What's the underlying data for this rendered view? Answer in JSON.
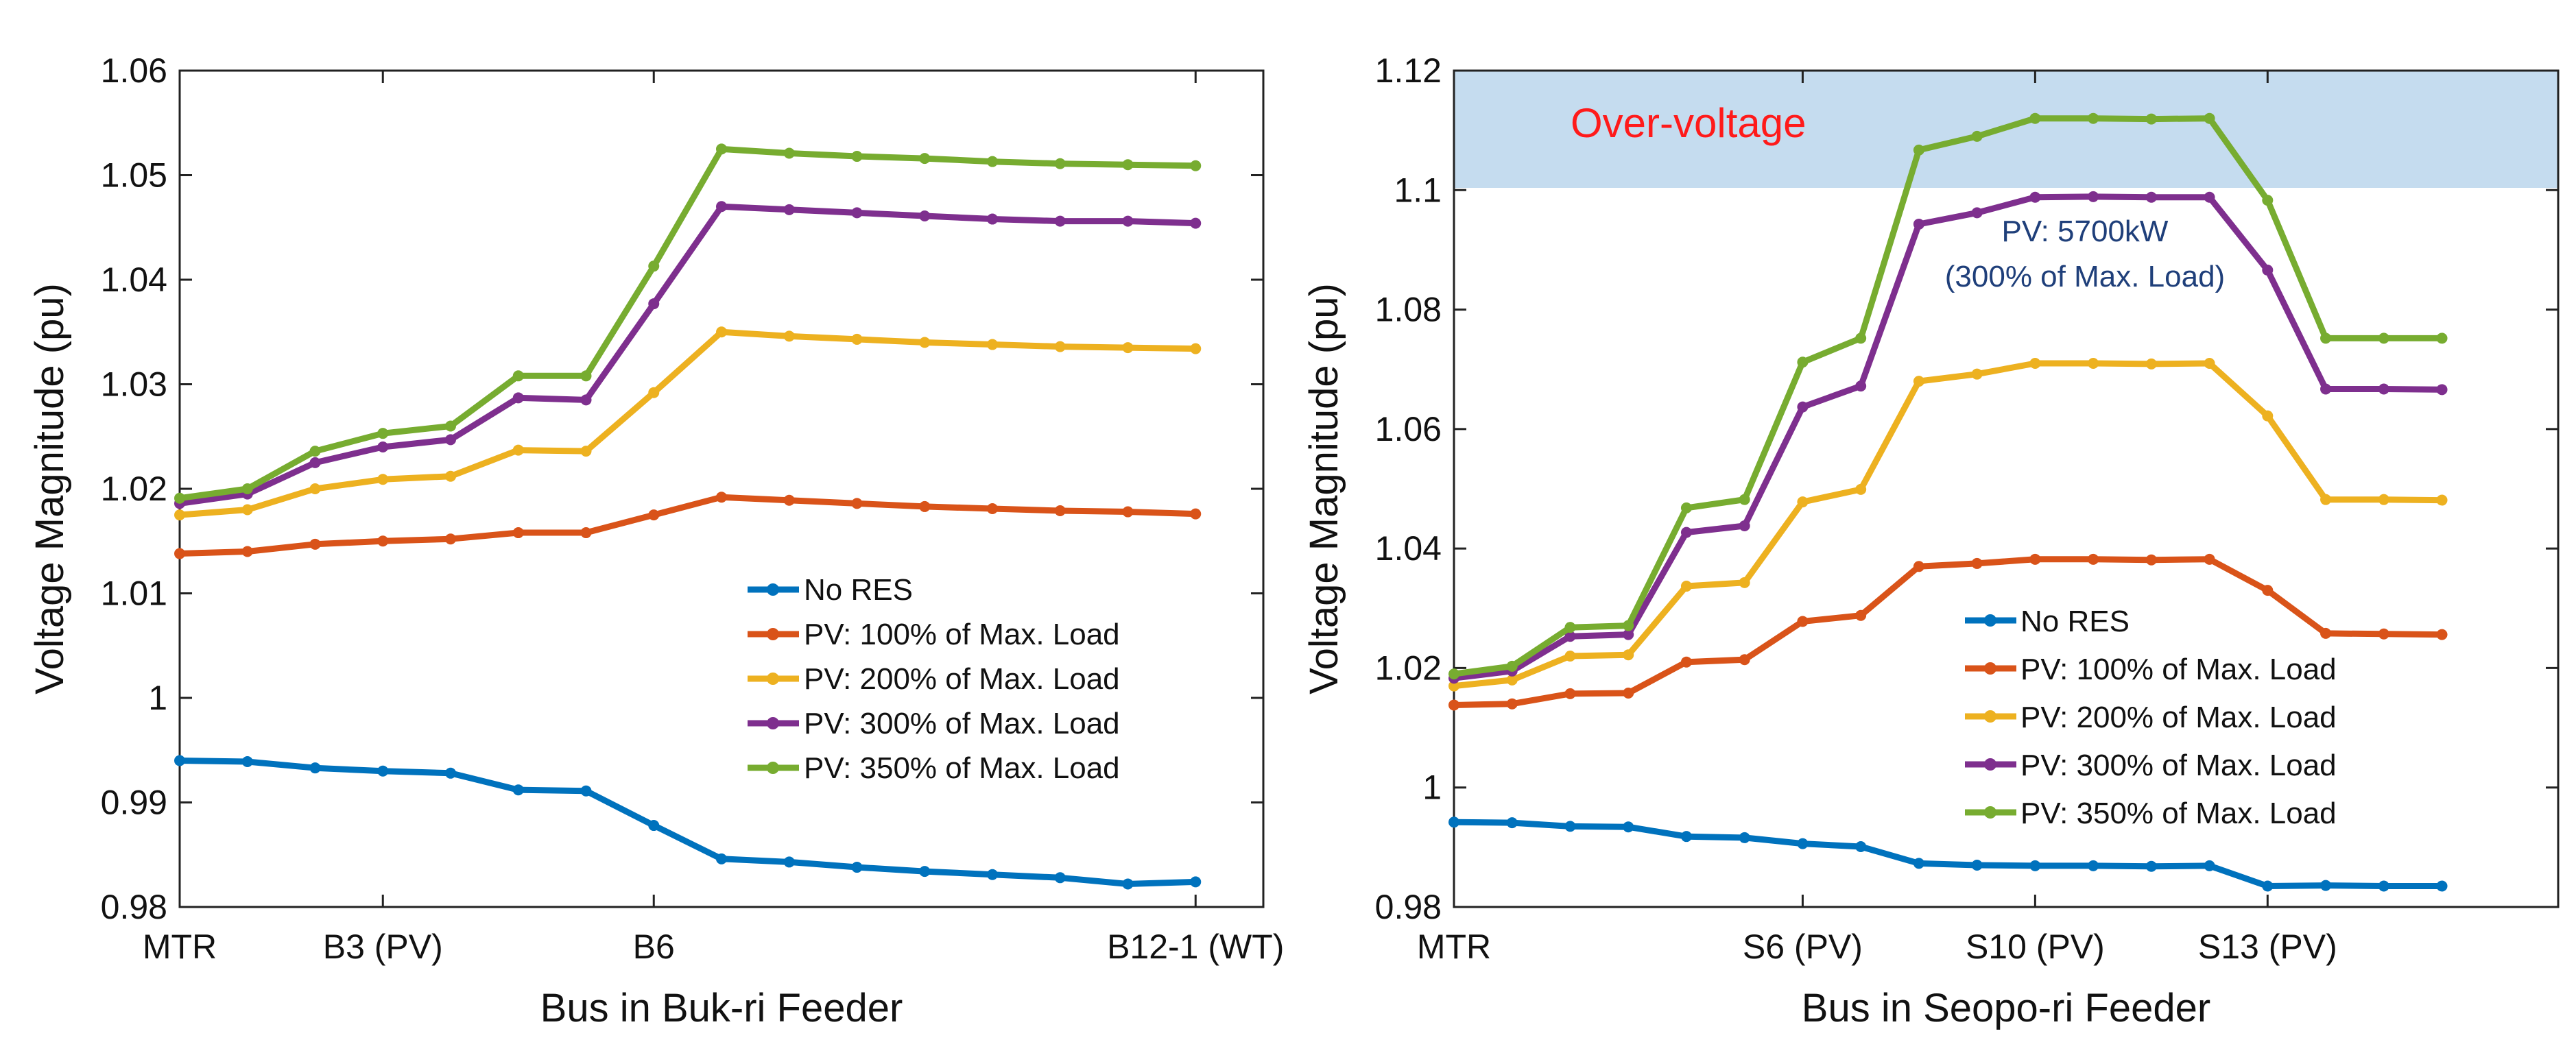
{
  "chart_data": [
    {
      "type": "line",
      "xlabel": "Bus in Buk-ri Feeder",
      "ylabel": "Voltage Magnitude (pu)",
      "ylim": [
        0.98,
        1.06
      ],
      "yticks": [
        "0.98",
        "0.99",
        "1",
        "1.01",
        "1.02",
        "1.03",
        "1.04",
        "1.05",
        "1.06"
      ],
      "xlim": [
        1,
        17
      ],
      "x_tick_labels": [
        {
          "x": 1,
          "label": "MTR"
        },
        {
          "x": 4,
          "label": "B3 (PV)"
        },
        {
          "x": 8,
          "label": "B6"
        },
        {
          "x": 16,
          "label": "B12-1 (WT)"
        }
      ],
      "x": [
        1,
        2,
        3,
        4,
        5,
        6,
        7,
        8,
        9,
        10,
        11,
        12,
        13,
        14,
        15,
        16
      ],
      "series": [
        {
          "name": "No RES",
          "color": "#0072BD",
          "values": [
            0.994,
            0.9939,
            0.9933,
            0.993,
            0.9928,
            0.9912,
            0.9911,
            0.9878,
            0.9846,
            0.9843,
            0.9838,
            0.9834,
            0.9831,
            0.9828,
            0.9822,
            0.9824
          ]
        },
        {
          "name": "PV: 100% of Max. Load",
          "color": "#D95319",
          "values": [
            1.0138,
            1.014,
            1.0147,
            1.015,
            1.0152,
            1.0158,
            1.0158,
            1.0175,
            1.0192,
            1.0189,
            1.0186,
            1.0183,
            1.0181,
            1.0179,
            1.0178,
            1.0176
          ]
        },
        {
          "name": "PV: 200% of Max. Load",
          "color": "#EDB120",
          "values": [
            1.0175,
            1.018,
            1.02,
            1.0209,
            1.0212,
            1.0237,
            1.0236,
            1.0292,
            1.035,
            1.0346,
            1.0343,
            1.034,
            1.0338,
            1.0336,
            1.0335,
            1.0334
          ]
        },
        {
          "name": "PV: 300% of Max. Load",
          "color": "#7E2F8E",
          "values": [
            1.0186,
            1.0195,
            1.0225,
            1.024,
            1.0247,
            1.0287,
            1.0285,
            1.0377,
            1.047,
            1.0467,
            1.0464,
            1.0461,
            1.0458,
            1.0456,
            1.0456,
            1.0454
          ]
        },
        {
          "name": "PV: 350% of Max. Load",
          "color": "#77AC30",
          "values": [
            1.0191,
            1.02,
            1.0236,
            1.0253,
            1.026,
            1.0308,
            1.0308,
            1.0413,
            1.0525,
            1.0521,
            1.0518,
            1.0516,
            1.0513,
            1.0511,
            1.051,
            1.0509
          ]
        }
      ],
      "legend_position": "lower-right"
    },
    {
      "type": "line",
      "xlabel": "Bus in Seopo-ri Feeder",
      "ylabel": "Voltage Magnitude (pu)",
      "ylim": [
        0.98,
        1.12
      ],
      "yticks": [
        "0.98",
        "1",
        "1.02",
        "1.04",
        "1.06",
        "1.08",
        "1.1",
        "1.12"
      ],
      "xlim": [
        1,
        20
      ],
      "x_tick_labels": [
        {
          "x": 1,
          "label": "MTR"
        },
        {
          "x": 7,
          "label": "S6 (PV)"
        },
        {
          "x": 11,
          "label": "S10 (PV)"
        },
        {
          "x": 15,
          "label": "S13 (PV)"
        }
      ],
      "x": [
        1,
        2,
        3,
        4,
        5,
        6,
        7,
        8,
        9,
        10,
        11,
        12,
        13,
        14,
        15,
        16,
        17,
        18
      ],
      "series": [
        {
          "name": "No RES",
          "color": "#0072BD",
          "values": [
            0.9942,
            0.9941,
            0.9935,
            0.9934,
            0.9918,
            0.9916,
            0.9906,
            0.9901,
            0.9873,
            0.987,
            0.9869,
            0.9869,
            0.9868,
            0.9869,
            0.9835,
            0.9836,
            0.9835,
            0.9835
          ]
        },
        {
          "name": "PV: 100% of Max. Load",
          "color": "#D95319",
          "values": [
            1.0138,
            1.014,
            1.0157,
            1.0158,
            1.021,
            1.0214,
            1.0278,
            1.0288,
            1.037,
            1.0375,
            1.0382,
            1.0382,
            1.0381,
            1.0382,
            1.033,
            1.0258,
            1.0257,
            1.0256
          ]
        },
        {
          "name": "PV: 200% of Max. Load",
          "color": "#EDB120",
          "values": [
            1.017,
            1.018,
            1.022,
            1.0222,
            1.0337,
            1.0343,
            1.0478,
            1.0499,
            1.068,
            1.0692,
            1.071,
            1.071,
            1.0709,
            1.071,
            1.0622,
            1.0482,
            1.0482,
            1.0481
          ]
        },
        {
          "name": "PV: 300% of Max. Load",
          "color": "#7E2F8E",
          "values": [
            1.0183,
            1.0195,
            1.0253,
            1.0256,
            1.0427,
            1.0438,
            1.0637,
            1.0672,
            1.0943,
            1.0962,
            1.0988,
            1.0989,
            1.0988,
            1.0988,
            1.0866,
            1.0667,
            1.0667,
            1.0666
          ]
        },
        {
          "name": "PV: 350% of Max. Load",
          "color": "#77AC30",
          "values": [
            1.019,
            1.0203,
            1.0268,
            1.0271,
            1.0468,
            1.0482,
            1.0712,
            1.0752,
            1.1067,
            1.109,
            1.112,
            1.112,
            1.1119,
            1.112,
            1.0983,
            1.0752,
            1.0752,
            1.0752
          ]
        }
      ],
      "shaded_region": {
        "ymin": 1.1,
        "ymax": 1.12,
        "label": "Over-voltage",
        "color": "#c5dcef"
      },
      "annotation": {
        "lines": [
          "PV: 5700kW",
          "(300% of Max. Load)"
        ]
      },
      "legend_position": "lower-right"
    }
  ]
}
